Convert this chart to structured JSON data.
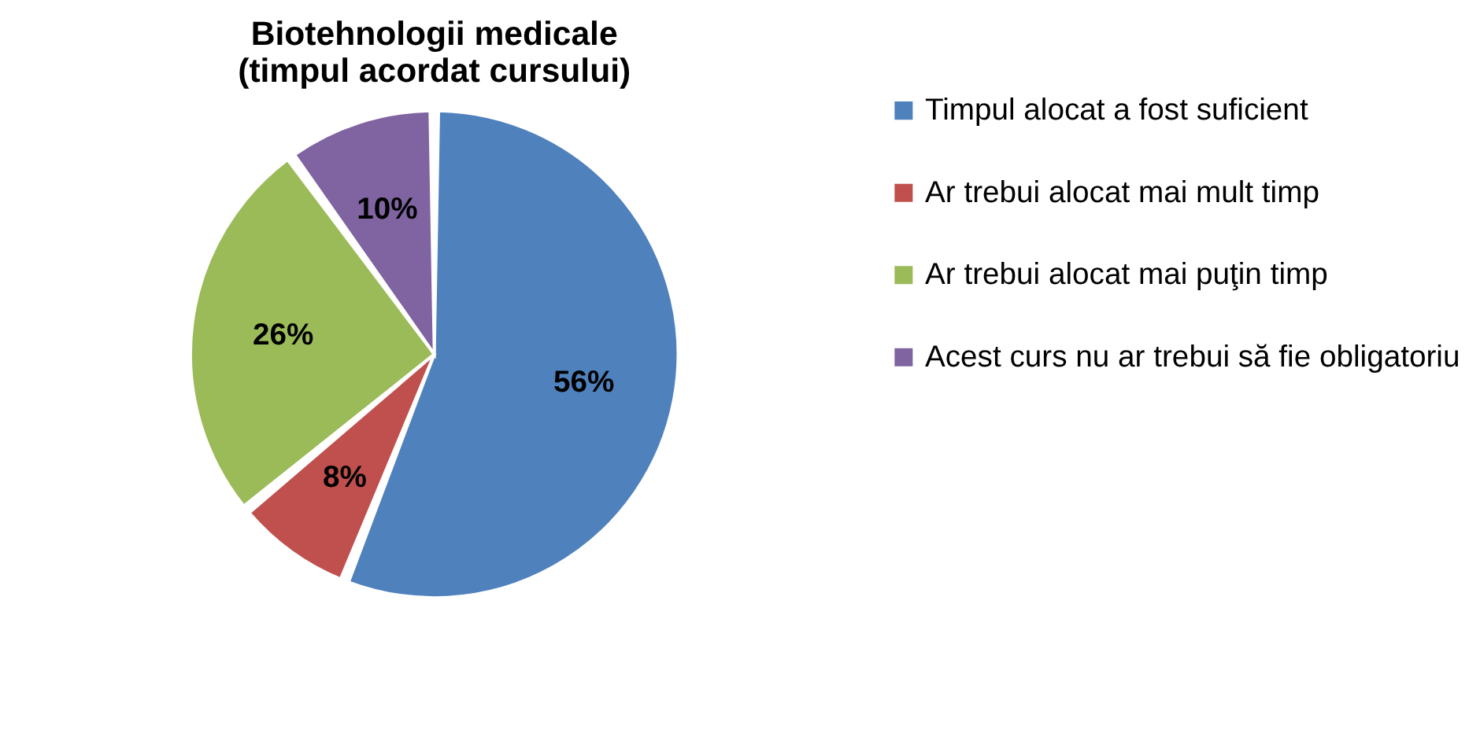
{
  "chart_data": {
    "type": "pie",
    "title": "Biotehnologii medicale\n(timpul acordat cursului)",
    "categories": [
      "Timpul alocat a fost suficient",
      "Ar trebui alocat mai mult timp",
      "Ar trebui alocat mai puţin timp",
      "Acest curs nu ar trebui să fie obligatoriu"
    ],
    "values": [
      56,
      8,
      26,
      10
    ],
    "colors": [
      "#4f81bd",
      "#c0504d",
      "#9bbb59",
      "#8064a2"
    ],
    "value_labels": [
      "56%",
      "8%",
      "26%",
      "10%"
    ],
    "legend": "right"
  }
}
